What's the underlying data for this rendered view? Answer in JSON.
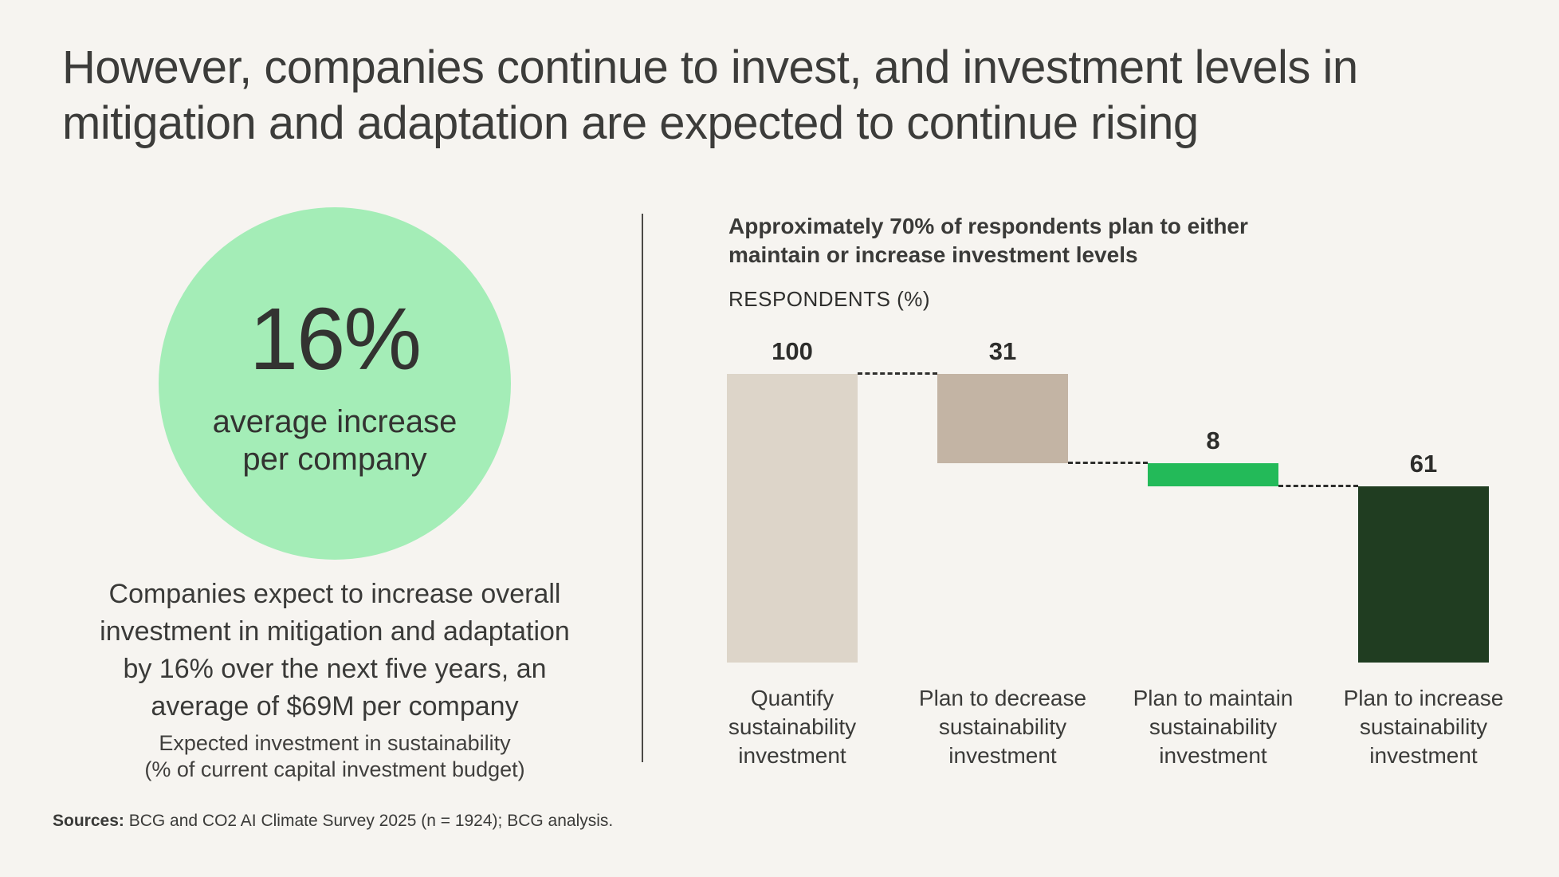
{
  "title_lines": [
    "However, companies continue to invest, and investment levels in",
    "mitigation and adaptation are expected to continue rising"
  ],
  "left_panel": {
    "circle_value": "16%",
    "circle_label_lines": [
      "average increase",
      "per company"
    ],
    "circle_color": "#a4edb7",
    "body_lines": [
      "Companies expect to increase overall",
      "investment in mitigation and adaptation",
      "by 16% over the next five years, an",
      "average of $69M per company"
    ],
    "caption_lines": [
      "Expected investment in sustainability",
      "(% of current capital investment budget)"
    ]
  },
  "right_panel": {
    "heading_lines": [
      "Approximately 70% of respondents plan to either",
      "maintain or increase investment levels"
    ],
    "axis_label": "RESPONDENTS (%)"
  },
  "chart_data": {
    "type": "bar",
    "subtype": "waterfall",
    "title": "Approximately 70% of respondents plan to either maintain or increase investment levels",
    "ylabel": "RESPONDENTS (%)",
    "categories": [
      "Quantify sustainability investment",
      "Plan to decrease sustainability investment",
      "Plan to maintain sustainability investment",
      "Plan to increase sustainability investment"
    ],
    "values": [
      100,
      31,
      8,
      61
    ],
    "data_labels": [
      "100",
      "31",
      "8",
      "61"
    ],
    "bar_colors": [
      "#ddd5c9",
      "#c3b4a4",
      "#23ba59",
      "#203d21"
    ],
    "ylim": [
      0,
      100
    ],
    "grid": false,
    "legend": false,
    "connector_style": "dashed",
    "connector_color": "#2e2e2c"
  },
  "footer": {
    "sources_label": "Sources:",
    "sources_text": " BCG and CO2 AI Climate Survey 2025 (n = 1924); BCG analysis."
  },
  "colors": {
    "background": "#f6f4f0",
    "title_text": "#3c3c3a",
    "divider": "#4b4946"
  }
}
